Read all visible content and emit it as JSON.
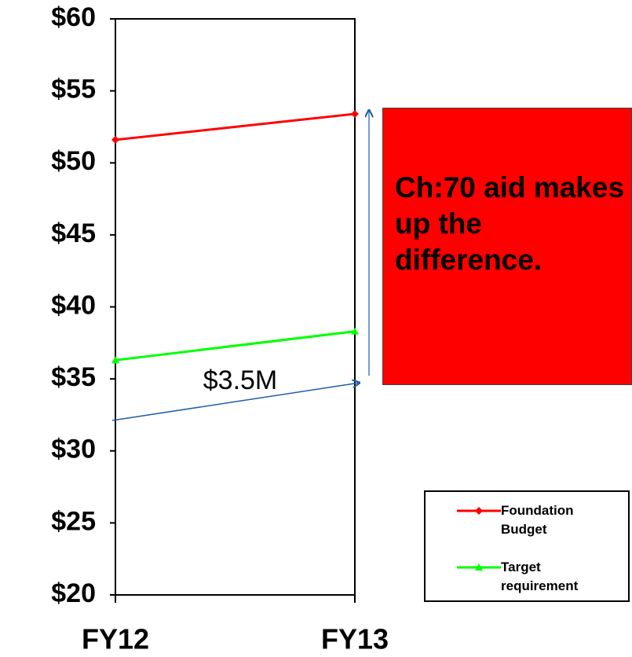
{
  "chart_data": {
    "type": "line",
    "categories": [
      "FY12",
      "FY13"
    ],
    "series": [
      {
        "name": "Foundation Budget",
        "color": "#ff0000",
        "marker": "diamond",
        "values": [
          51.6,
          53.4
        ]
      },
      {
        "name": "Target requirement",
        "color": "#00ff00",
        "marker": "triangle",
        "values": [
          36.3,
          38.3
        ]
      }
    ],
    "ylim": [
      20,
      60
    ],
    "yticks": [
      {
        "value": 20,
        "label": "$20"
      },
      {
        "value": 25,
        "label": "$25"
      },
      {
        "value": 30,
        "label": "$30"
      },
      {
        "value": 35,
        "label": "$35"
      },
      {
        "value": 40,
        "label": "$40"
      },
      {
        "value": 45,
        "label": "$45"
      },
      {
        "value": 50,
        "label": "$50"
      },
      {
        "value": 55,
        "label": "$55"
      },
      {
        "value": 60,
        "label": "$60"
      }
    ],
    "annotations": [
      "$3.5M",
      "Ch:70 aid makes up the difference."
    ]
  }
}
